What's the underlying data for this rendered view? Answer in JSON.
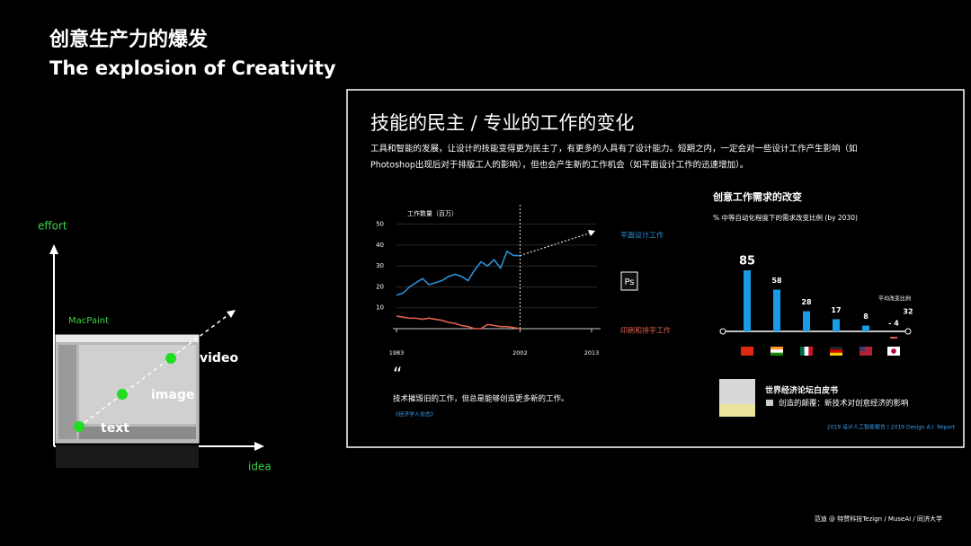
{
  "header": {
    "title_cn": "创意生产力的爆发",
    "title_en": "The explosion of Creativity"
  },
  "diagram": {
    "y_label": "effort",
    "x_label": "idea",
    "app_label": "MacPaint",
    "stages": [
      "text",
      "image",
      "video"
    ]
  },
  "panel": {
    "title": "技能的民主  /  专业的工作的变化",
    "description": [
      "工具和智能的发展，让设计的技能变得更为民主了，有更多的人具有了设计能力。短期之内，一定会对一些设计工作产生影响（如",
      "Photoshop出现后对于排版工人的影响），但也会产生新的工作机会（如平面设计工作的迅速增加）。"
    ],
    "line_chart": {
      "type": "line",
      "y_title": "工作数量（百万）",
      "x": [
        1983,
        1984,
        1985,
        1986,
        1987,
        1988,
        1989,
        1990,
        1991,
        1992,
        1993,
        1994,
        1995,
        1996,
        1997,
        1998,
        1999,
        2000,
        2001,
        2002
      ],
      "series": [
        {
          "name": "平面设计工作",
          "color": "#2e8fd6",
          "values": [
            16,
            17,
            20,
            22,
            24,
            21,
            22,
            23,
            25,
            26,
            25,
            23,
            28,
            32,
            30,
            33,
            29,
            37,
            35,
            35
          ]
        },
        {
          "name": "印刷和排字工作",
          "color": "#e0604f",
          "values": [
            6,
            5.5,
            5,
            5,
            4.5,
            5,
            4.5,
            4,
            3,
            2.5,
            1.5,
            1,
            0,
            0,
            2,
            1.5,
            1,
            1,
            0.5,
            0
          ]
        }
      ],
      "forecast": {
        "x": [
          2002,
          2013
        ],
        "values": [
          35,
          46
        ]
      },
      "xlim": [
        1983,
        2013
      ],
      "xticks": [
        1983,
        2002,
        2013
      ],
      "ylim": [
        0,
        55
      ],
      "yticks": [
        10,
        20,
        30,
        40,
        50
      ],
      "grid": true
    },
    "quote": {
      "mark": "“",
      "text": "技术摧毁旧的工作，但总是能够创造更多新的工作。",
      "source": "《经济学人杂志》"
    },
    "bar_chart": {
      "type": "bar",
      "title": "创意工作需求的改变",
      "subtitle": "% 中等自动化程度下的需求改变比例 (by 2030)",
      "categories": [
        null,
        null,
        null,
        null,
        null,
        null
      ],
      "values": [
        85,
        58,
        28,
        17,
        8,
        -4
      ],
      "value_labels": [
        "85",
        "58",
        "28",
        "17",
        "8",
        "- 4"
      ],
      "colors": [
        "#1a9be6",
        "#1a9be6",
        "#1a9be6",
        "#1a9be6",
        "#1a9be6",
        "#e0604f"
      ],
      "average": {
        "label": "平均改变比例",
        "value": 32
      }
    },
    "publication": {
      "title": "世界经济论坛白皮书",
      "subtitle": "创造的颠覆：新技术对创意经济的影响"
    },
    "report": "2019 设计人工智能报告  |  2019 Design A.I. Report"
  },
  "footer": "范迪 @ 特赞科技Tezign / MuseAI / 同济大学"
}
